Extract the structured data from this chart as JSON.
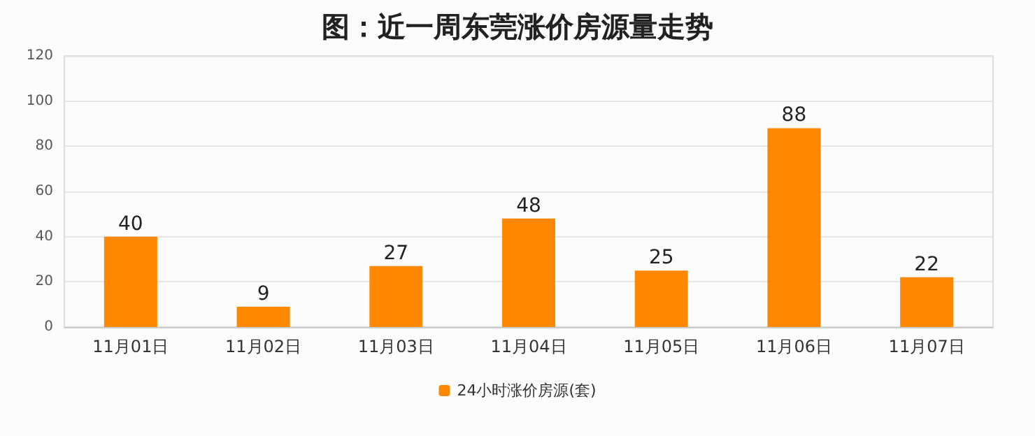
{
  "chart_data": {
    "type": "bar",
    "title": "图：近一周东莞涨价房源量走势",
    "categories": [
      "11月01日",
      "11月02日",
      "11月03日",
      "11月04日",
      "11月05日",
      "11月06日",
      "11月07日"
    ],
    "series": [
      {
        "name": "24小时涨价房源(套)",
        "color": "#ff8800",
        "values": [
          40,
          9,
          27,
          48,
          25,
          88,
          22
        ]
      }
    ],
    "ylim": [
      0,
      120
    ],
    "yticks": [
      0,
      20,
      40,
      60,
      80,
      100,
      120
    ],
    "grid": "y",
    "legend": "bottom",
    "data_labels": true
  }
}
